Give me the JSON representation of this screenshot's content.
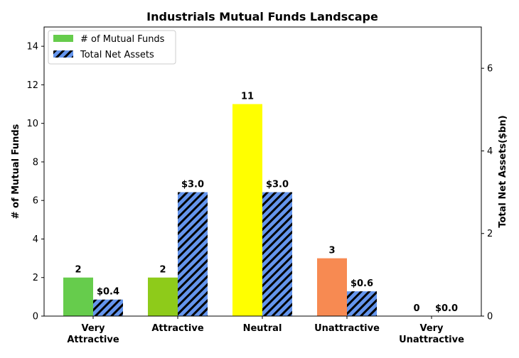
{
  "chart_data": {
    "type": "bar",
    "title": "Industrials Mutual Funds Landscape",
    "categories": [
      [
        "Very",
        "Attractive"
      ],
      [
        "Attractive"
      ],
      [
        "Neutral"
      ],
      [
        "Unattractive"
      ],
      [
        "Very",
        "Unattractive"
      ]
    ],
    "ylabel": "# of Mutual Funds",
    "y2label": "Total Net Assets($bn)",
    "ylim": [
      0,
      15
    ],
    "y2lim": [
      0,
      7
    ],
    "yticks": [
      "0",
      "2",
      "4",
      "6",
      "8",
      "10",
      "12",
      "14"
    ],
    "y2ticks": [
      "0",
      "2",
      "4",
      "6"
    ],
    "legend_position": "top-left",
    "series": [
      {
        "name": "# of Mutual Funds",
        "axis": "left",
        "values": [
          2,
          2,
          11,
          3,
          0
        ],
        "labels": [
          "2",
          "2",
          "11",
          "3",
          "0"
        ],
        "colors": [
          "#66cc4c",
          "#8ecb1a",
          "#ffff00",
          "#f78a52",
          "#d42a2a"
        ],
        "legend_color": "#66cc4c"
      },
      {
        "name": "Total Net Assets",
        "axis": "right",
        "values": [
          0.4,
          3.0,
          3.0,
          0.6,
          0.0
        ],
        "labels": [
          "$0.4",
          "$3.0",
          "$3.0",
          "$0.6",
          "$0.0"
        ],
        "color": "#6495ed",
        "hatch": "//"
      }
    ]
  }
}
